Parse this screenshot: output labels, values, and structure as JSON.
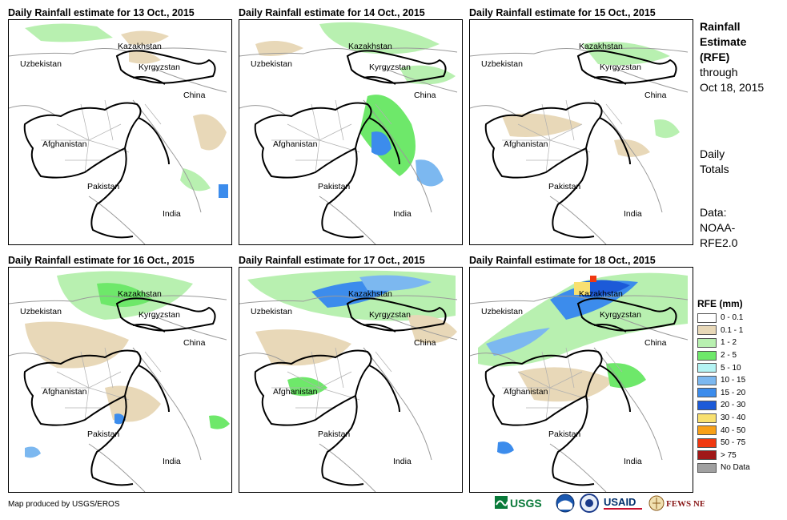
{
  "panels": [
    {
      "title": "Daily Rainfall estimate for 13 Oct., 2015"
    },
    {
      "title": "Daily Rainfall estimate for 14 Oct., 2015"
    },
    {
      "title": "Daily Rainfall estimate for 15 Oct., 2015"
    },
    {
      "title": "Daily Rainfall estimate for 16 Oct., 2015"
    },
    {
      "title": "Daily Rainfall estimate for 17 Oct., 2015"
    },
    {
      "title": "Daily Rainfall estimate for 18 Oct., 2015"
    }
  ],
  "labels": {
    "kazakhstan": "Kazakhstan",
    "uzbekistan": "Uzbekistan",
    "kyrgyzstan": "Kyrgyzstan",
    "china": "China",
    "afghanistan": "Afghanistan",
    "pakistan": "Pakistan",
    "india": "India"
  },
  "side": {
    "title_line1": "Rainfall",
    "title_line2": "Estimate",
    "title_line3": "(RFE)",
    "title_line4": "through",
    "title_line5": "Oct 18, 2015",
    "daily1": "Daily",
    "daily2": "Totals",
    "data1": "Data:",
    "data2": "NOAA-",
    "data3": "RFE2.0"
  },
  "legend": {
    "title": "RFE (mm)",
    "items": [
      {
        "label": "0 - 0.1",
        "color": "#ffffff"
      },
      {
        "label": "0.1 - 1",
        "color": "#e8d8b8"
      },
      {
        "label": "1 - 2",
        "color": "#b8f0b0"
      },
      {
        "label": "2 - 5",
        "color": "#6ee86a"
      },
      {
        "label": "5 - 10",
        "color": "#b4f4f4"
      },
      {
        "label": "10 - 15",
        "color": "#7cb8f0"
      },
      {
        "label": "15 - 20",
        "color": "#3c8cec"
      },
      {
        "label": "20 - 30",
        "color": "#1c5ad8"
      },
      {
        "label": "30 - 40",
        "color": "#f8e070"
      },
      {
        "label": "40 - 50",
        "color": "#f8a018"
      },
      {
        "label": "50 - 75",
        "color": "#f03810"
      },
      {
        "label": "> 75",
        "color": "#a01818"
      },
      {
        "label": "No Data",
        "color": "#a0a0a0"
      }
    ]
  },
  "footer": {
    "credit": "Map produced by USGS/EROS"
  },
  "logos": {
    "usgs": "USGS",
    "usaid": "USAID",
    "fews": "FEWS NET"
  }
}
